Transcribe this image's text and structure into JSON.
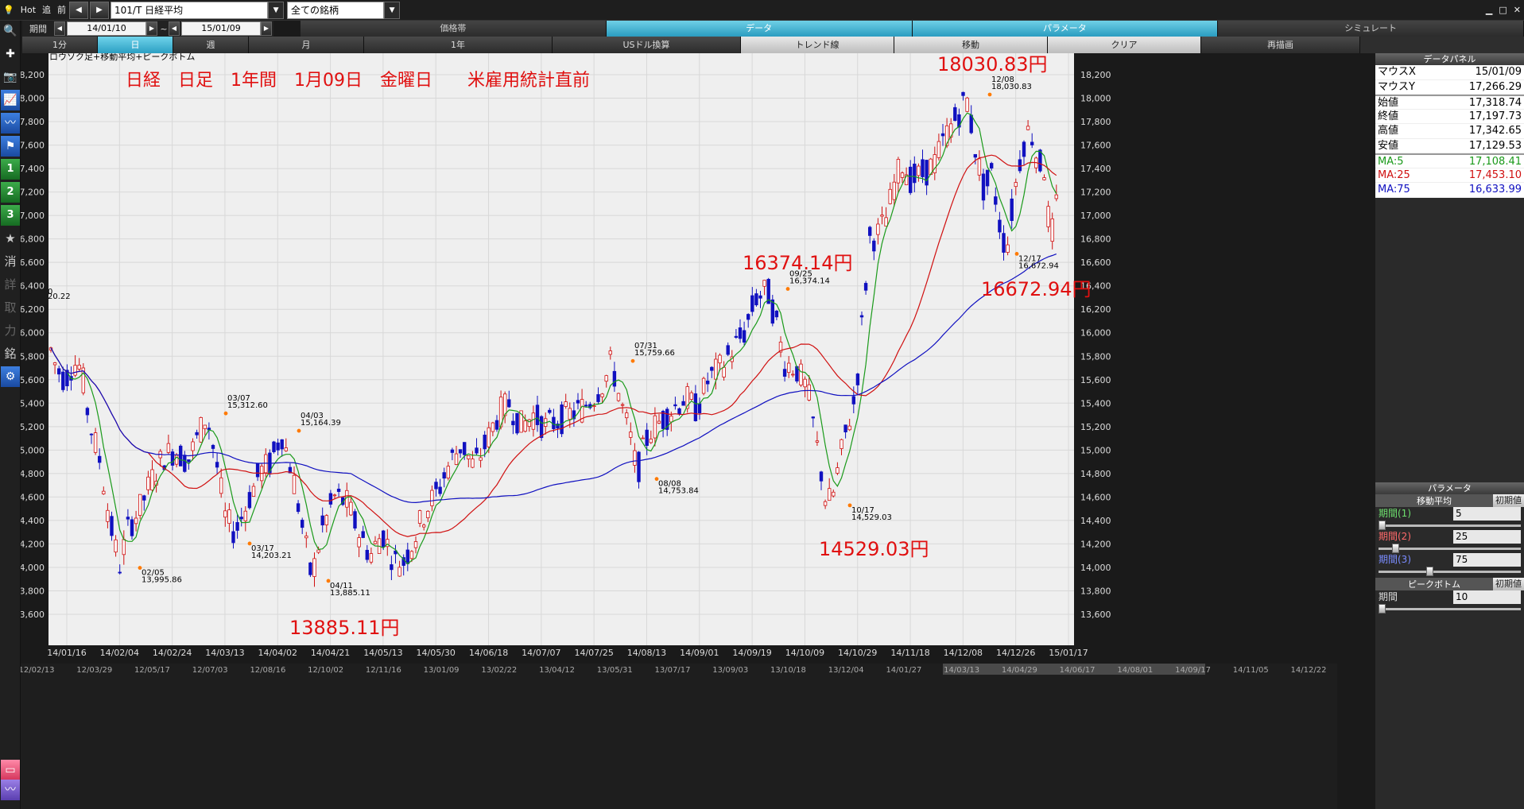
{
  "topbar": {
    "hot": "Hot",
    "next": "追",
    "prev": "前",
    "symbol": "101/T 日経平均",
    "filter": "全ての銘柄"
  },
  "date_range": {
    "label": "期間",
    "from": "14/01/10",
    "tilde": "~",
    "to": "15/01/09"
  },
  "tabs": [
    {
      "label": "価格帯",
      "active": false
    },
    {
      "label": "データ",
      "active": true
    },
    {
      "label": "パラメータ",
      "active": true
    },
    {
      "label": "シミュレート",
      "active": false
    }
  ],
  "subtabs": [
    {
      "label": "1分",
      "style": "dark",
      "w": 95
    },
    {
      "label": "日",
      "style": "active",
      "w": 95
    },
    {
      "label": "週",
      "style": "dark",
      "w": 95
    },
    {
      "label": "月",
      "style": "dark",
      "w": 145
    },
    {
      "label": "1年",
      "style": "dark",
      "w": 237
    },
    {
      "label": "USドル換算",
      "style": "dark",
      "w": 237
    },
    {
      "label": "トレンド線",
      "style": "light",
      "w": 237
    },
    {
      "label": "移動",
      "style": "light",
      "w": 237
    },
    {
      "label": "クリア",
      "style": "light",
      "w": 237
    },
    {
      "label": "再描画",
      "style": "dark",
      "w": 274
    }
  ],
  "leftbar": {
    "icons": [
      "search-icon",
      "crosshair-icon",
      "camera-icon",
      "chart-icon",
      "line-chart-icon",
      "flag-icon"
    ],
    "numbers": [
      "1",
      "2",
      "3"
    ],
    "chars": [
      "★",
      "消",
      "詳",
      "取",
      "力",
      "銘"
    ]
  },
  "chart_data": {
    "type": "candlestick",
    "legend": "ロウソク足+移動平均+ピークボトム",
    "title": "日経　日足　1年間　1月09日　金曜日　　米雇用統計直前",
    "y_ticks": [
      13600,
      13800,
      14000,
      14200,
      14400,
      14600,
      14800,
      15000,
      15200,
      15400,
      15600,
      15800,
      16000,
      16200,
      16400,
      16600,
      16800,
      17000,
      17200,
      17400,
      17600,
      17800,
      18000,
      18200
    ],
    "x_ticks": [
      "14/01/16",
      "14/02/04",
      "14/02/24",
      "14/03/13",
      "14/04/02",
      "14/04/21",
      "14/05/13",
      "14/05/30",
      "14/06/18",
      "14/07/07",
      "14/07/25",
      "14/08/13",
      "14/09/01",
      "14/09/19",
      "14/10/09",
      "14/10/29",
      "14/11/18",
      "14/12/08",
      "14/12/26",
      "15/01/17"
    ],
    "bottom_ticks": [
      "12/02/13",
      "12/03/29",
      "12/05/17",
      "12/07/03",
      "12/08/16",
      "12/10/02",
      "12/11/16",
      "13/01/09",
      "13/02/22",
      "13/04/12",
      "13/05/31",
      "13/07/17",
      "13/09/03",
      "13/10/18",
      "13/12/04",
      "14/01/27",
      "14/03/13",
      "14/04/29",
      "14/06/17",
      "14/08/01",
      "14/09/17",
      "14/11/05",
      "14/12/22"
    ],
    "cut_label": {
      "top": "0",
      "bottom": "20.22"
    },
    "peaks": [
      {
        "date": "02/05",
        "value": "13,995.86"
      },
      {
        "date": "03/07",
        "value": "15,312.60"
      },
      {
        "date": "03/17",
        "value": "14,203.21"
      },
      {
        "date": "04/03",
        "value": "15,164.39"
      },
      {
        "date": "04/11",
        "value": "13,885.11"
      },
      {
        "date": "07/31",
        "value": "15,759.66"
      },
      {
        "date": "08/08",
        "value": "14,753.84"
      },
      {
        "date": "09/25",
        "value": "16,374.14"
      },
      {
        "date": "10/17",
        "value": "14,529.03"
      },
      {
        "date": "12/08",
        "value": "18,030.83"
      },
      {
        "date": "12/17",
        "value": "16,672.94"
      }
    ],
    "annotations": [
      "18030.83円",
      "16374.14円",
      "16672.94円",
      "14529.03円",
      "13885.11円"
    ],
    "series": [
      {
        "name": "MA:5",
        "color": "#1a9a1a"
      },
      {
        "name": "MA:25",
        "color": "#d01010"
      },
      {
        "name": "MA:75",
        "color": "#1010c0"
      }
    ]
  },
  "data_panel": {
    "title": "データパネル",
    "rows": [
      {
        "label": "マウスX",
        "value": "15/01/09",
        "style": ""
      },
      {
        "label": "マウスY",
        "value": "17,266.29",
        "style": ""
      },
      {
        "label": "始値",
        "value": "17,318.74",
        "style": ""
      },
      {
        "label": "終値",
        "value": "17,197.73",
        "style": ""
      },
      {
        "label": "高値",
        "value": "17,342.65",
        "style": ""
      },
      {
        "label": "安値",
        "value": "17,129.53",
        "style": ""
      },
      {
        "label": "MA:5",
        "value": "17,108.41",
        "style": "green"
      },
      {
        "label": "MA:25",
        "value": "17,453.10",
        "style": "red"
      },
      {
        "label": "MA:75",
        "value": "16,633.99",
        "style": "blue"
      }
    ]
  },
  "param_panel": {
    "title": "パラメータ",
    "ma_title": "移動平均",
    "reset": "初期値",
    "periods": [
      {
        "label": "期間(1)",
        "value": "5",
        "color": "#6ee06e",
        "pos": 0.0
      },
      {
        "label": "期間(2)",
        "value": "25",
        "color": "#ff6a6a",
        "pos": 0.1
      },
      {
        "label": "期間(3)",
        "value": "75",
        "color": "#7a8cff",
        "pos": 0.35
      }
    ],
    "pb_title": "ピークボトム",
    "pb_label": "期間",
    "pb_value": "10",
    "pb_pos": 0.0
  }
}
